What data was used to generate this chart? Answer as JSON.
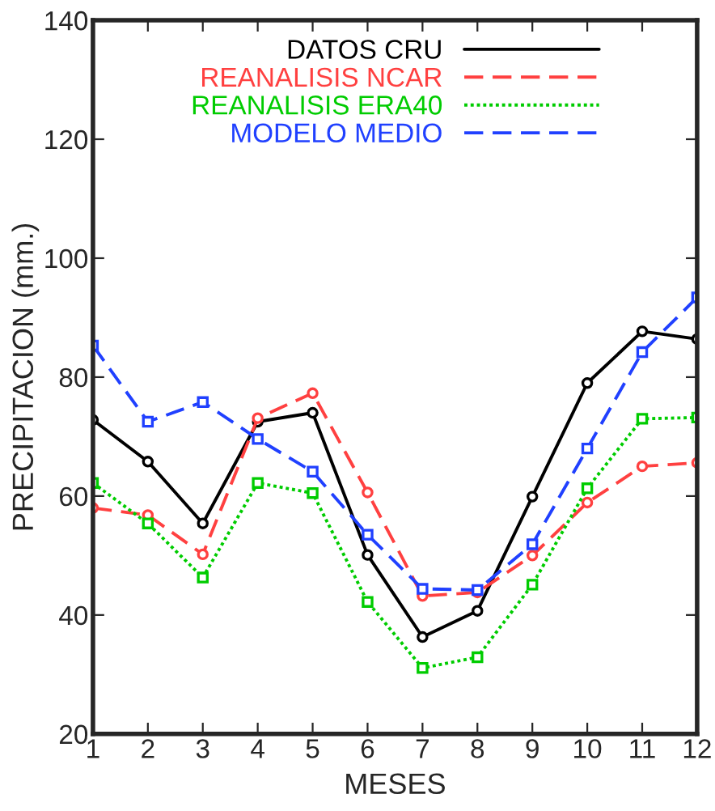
{
  "chart_data": {
    "type": "line",
    "xlabel": "MESES",
    "ylabel": "PRECIPITACION (mm.)",
    "x": [
      1,
      2,
      3,
      4,
      5,
      6,
      7,
      8,
      9,
      10,
      11,
      12
    ],
    "xlim": [
      1,
      12
    ],
    "xticks": [
      1,
      2,
      3,
      4,
      5,
      6,
      7,
      8,
      9,
      10,
      11,
      12
    ],
    "ylim": [
      20,
      140
    ],
    "yticks": [
      20,
      40,
      60,
      80,
      100,
      120,
      140
    ],
    "grid": false,
    "legend": "top",
    "series": [
      {
        "name": "DATOS CRU",
        "color": "#000000",
        "line_style": "solid",
        "marker": "circle",
        "values": [
          72.8,
          65.8,
          55.4,
          72.5,
          74.0,
          50.1,
          36.3,
          40.7,
          59.9,
          79.0,
          87.7,
          86.4
        ]
      },
      {
        "name": "REANALISIS NCAR",
        "color": "#ff4040",
        "line_style": "dashed",
        "marker": "circle",
        "values": [
          58.0,
          56.8,
          50.2,
          73.1,
          77.3,
          60.6,
          43.2,
          43.8,
          50.0,
          58.9,
          65.0,
          65.6
        ]
      },
      {
        "name": "REANALISIS ERA40",
        "color": "#00cc00",
        "line_style": "dotted",
        "marker": "square",
        "values": [
          62.2,
          55.4,
          46.3,
          62.2,
          60.5,
          42.2,
          31.1,
          32.9,
          45.1,
          61.3,
          73.0,
          73.2
        ]
      },
      {
        "name": "MODELO MEDIO",
        "color": "#2040ff",
        "line_style": "dashed",
        "marker": "square",
        "values": [
          85.3,
          72.5,
          75.8,
          69.6,
          64.1,
          53.5,
          44.4,
          44.2,
          51.9,
          68.0,
          84.2,
          93.4
        ]
      }
    ]
  }
}
